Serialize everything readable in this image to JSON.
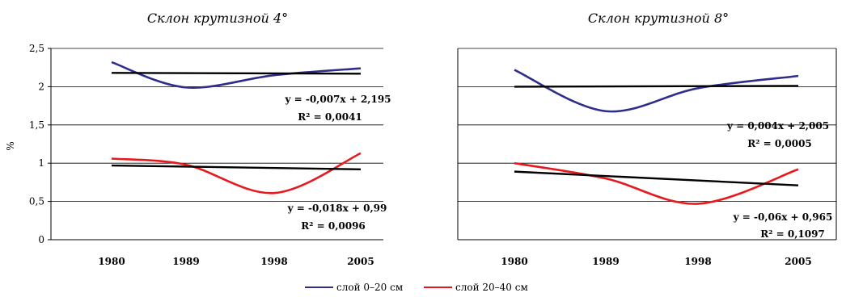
{
  "colors": {
    "blue": "#2e2e8a",
    "red": "#e8191e",
    "black": "#000000",
    "grid": "#000000"
  },
  "legend": {
    "items": [
      {
        "label": "слой 0–20 см",
        "color": "#2e2e8a"
      },
      {
        "label": "слой 20–40 см",
        "color": "#e8191e"
      }
    ],
    "position": "bottom-center"
  },
  "chart_data": [
    {
      "type": "line",
      "title": "Склон крутизной 4°",
      "ylabel": "%",
      "ylim": [
        0,
        2.5
      ],
      "yticks": [
        "0",
        "0,5",
        "1",
        "1,5",
        "2",
        "2,5"
      ],
      "grid": true,
      "categories": [
        "1980",
        "1989",
        "1998",
        "2005"
      ],
      "series": [
        {
          "name": "слой 0–20 см",
          "values": [
            2.32,
            1.99,
            2.15,
            2.24
          ]
        },
        {
          "name": "слой 20–40 см",
          "values": [
            1.06,
            0.98,
            0.61,
            1.13
          ]
        }
      ],
      "trendlines": [
        {
          "values_start": 2.18,
          "values_end": 2.17,
          "equation": "y = -0,007x + 2,195",
          "r2": "R² = 0,0041"
        },
        {
          "values_start": 0.97,
          "values_end": 0.92,
          "equation": "y = -0,018x + 0,99",
          "r2": "R² = 0,0096"
        }
      ]
    },
    {
      "type": "line",
      "title": "Склон крутизной 8°",
      "ylim": [
        0,
        2.5
      ],
      "grid": true,
      "categories": [
        "1980",
        "1989",
        "1998",
        "2005"
      ],
      "series": [
        {
          "name": "слой 0–20 см",
          "values": [
            2.22,
            1.68,
            1.98,
            2.14
          ]
        },
        {
          "name": "слой 20–40 см",
          "values": [
            1.0,
            0.8,
            0.47,
            0.92
          ]
        }
      ],
      "trendlines": [
        {
          "values_start": 2.0,
          "values_end": 2.01,
          "equation": "y = 0,004x + 2,005",
          "r2": "R² = 0,0005"
        },
        {
          "values_start": 0.89,
          "values_end": 0.71,
          "equation": "y = -0,06x + 0,965",
          "r2": "R² = 0,1097"
        }
      ]
    }
  ]
}
